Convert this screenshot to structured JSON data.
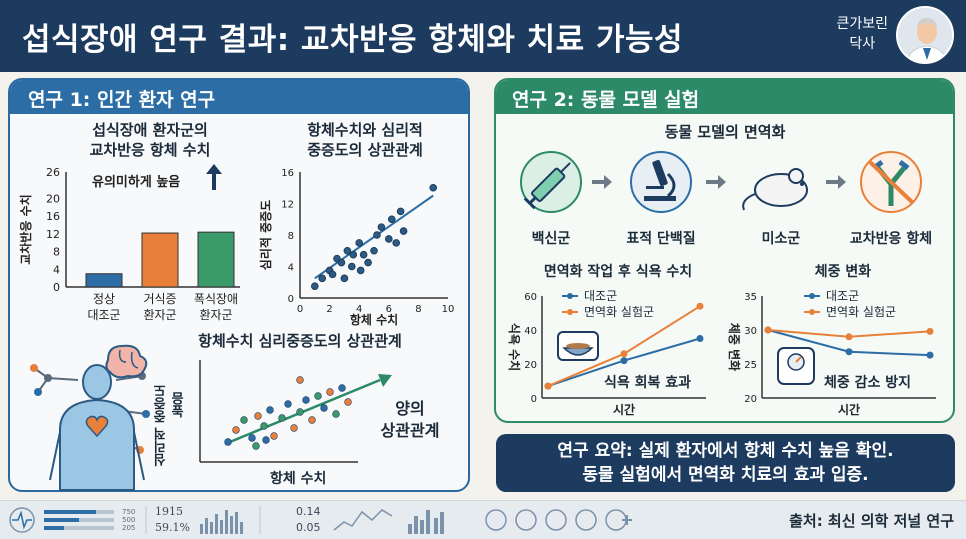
{
  "header": {
    "title": "섭식장애 연구 결과: 교차반응 항체와 치료 가능성",
    "author_line1": "큰가보린",
    "author_line2": "닥사"
  },
  "study1": {
    "heading": "연구 1: 인간 환자 연구",
    "bar_title_line1": "섭식장애 환자군의",
    "bar_title_line2": "교차반응 항체 수치",
    "sig_note": "유의미하게 높음",
    "scatter_title_line1": "항체수치와 심리적",
    "scatter_title_line2": "중증도의 상관관계",
    "bottom_title": "항체수치 심리중증도의 상관관계",
    "bottom_ylabel_1": "심리적 중증도",
    "bottom_ylabel_2": "높음",
    "bottom_xlabel": "항체 수치",
    "positive_line1": "양의",
    "positive_line2": "상관관계"
  },
  "study2": {
    "heading": "연구 2: 동물 모델 실험",
    "flow_title": "동물 모델의 면역화",
    "flow_steps": [
      "백신군",
      "표적 단백질",
      "미소군",
      "교차반응 항체"
    ],
    "food_effect": "식욕 회복 효과",
    "weight_effect": "체중 감소 방지"
  },
  "summary": {
    "line1": "연구 요약: 실제 환자에서 항체 수치 높음 확인.",
    "line2": "동물 실험에서 면역화 치료의 효과 입증."
  },
  "footer": {
    "source": "출처: 최신 의학 저널 연구",
    "stat1": "1915",
    "stat2": "59.1%",
    "val1": "0.14",
    "val2": "0.05",
    "mini_values": [
      "750",
      "500",
      "205"
    ]
  },
  "colors": {
    "navy": "#1d3a5f",
    "blue": "#2c6da5",
    "green": "#2d8a68",
    "orange": "#e8803a",
    "bar_blue": "#2f6da6",
    "bar_green": "#3a9a6a"
  },
  "icons": [
    "syringe-icon",
    "microscope-icon",
    "mouse-icon",
    "antibody-blocked-icon",
    "brain-icon",
    "heart-icon",
    "food-bowl-icon",
    "scale-icon",
    "avatar-doctor-icon"
  ],
  "chart_data": [
    {
      "type": "bar",
      "title": "섭식장애 환자군의 교차반응 항체 수치",
      "ylabel": "교차반응 수치",
      "categories": [
        "정상 대조군",
        "거식증 환자군",
        "폭식장애 환자군"
      ],
      "values": [
        3,
        12.2,
        12.4
      ],
      "ylim": [
        0,
        26
      ],
      "yticks": [
        "0",
        "4",
        "8",
        "12",
        "16",
        "20",
        "26"
      ],
      "annotation": "유의미하게 높음",
      "colors": [
        "#2f6da6",
        "#e8803a",
        "#3a9a6a"
      ]
    },
    {
      "type": "scatter",
      "title": "항체수치와 심리적 중증도의 상관관계",
      "xlabel": "항체 수치",
      "ylabel": "심리적 중증도",
      "xlim": [
        0,
        10
      ],
      "ylim": [
        0,
        16
      ],
      "xticks": [
        "0",
        "2",
        "4",
        "6",
        "8",
        "10"
      ],
      "yticks": [
        "0",
        "4",
        "8",
        "12",
        "16"
      ],
      "points": [
        [
          1,
          1.5
        ],
        [
          1.5,
          2.5
        ],
        [
          2,
          3.5
        ],
        [
          2.2,
          3
        ],
        [
          2.5,
          5
        ],
        [
          2.8,
          4.5
        ],
        [
          3,
          2.5
        ],
        [
          3.2,
          6
        ],
        [
          3.5,
          4
        ],
        [
          3.6,
          5.5
        ],
        [
          4,
          7
        ],
        [
          4.1,
          3.5
        ],
        [
          4.3,
          5.5
        ],
        [
          4.6,
          4.5
        ],
        [
          5,
          6
        ],
        [
          5.2,
          8
        ],
        [
          5.5,
          9
        ],
        [
          6,
          7.5
        ],
        [
          6.2,
          10
        ],
        [
          6.5,
          7
        ],
        [
          6.8,
          11
        ],
        [
          7,
          8.5
        ],
        [
          9,
          14
        ]
      ],
      "trend": [
        [
          1,
          2.5
        ],
        [
          9,
          13
        ]
      ]
    },
    {
      "type": "line",
      "title": "면역화 작업 후 식욕 수치",
      "xlabel": "시간",
      "ylabel": "식욕 수치",
      "ylim": [
        0,
        60
      ],
      "yticks": [
        "0",
        "20",
        "40",
        "60"
      ],
      "x": [
        0,
        1,
        2
      ],
      "series": [
        {
          "name": "대조군",
          "values": [
            7,
            22,
            35
          ],
          "color": "#2c6da5"
        },
        {
          "name": "면역화 실험군",
          "values": [
            7,
            26,
            54
          ],
          "color": "#e8803a"
        }
      ]
    },
    {
      "type": "line",
      "title": "체중 변화",
      "xlabel": "시간",
      "ylabel": "체중 변화",
      "ylim": [
        20,
        35
      ],
      "yticks": [
        "20",
        "25",
        "30",
        "35"
      ],
      "x": [
        0,
        1,
        2
      ],
      "series": [
        {
          "name": "대조군",
          "values": [
            30,
            26.8,
            26.3
          ],
          "color": "#2c6da5"
        },
        {
          "name": "면역화 실험군",
          "values": [
            30,
            29,
            29.8
          ],
          "color": "#e8803a"
        }
      ]
    }
  ]
}
